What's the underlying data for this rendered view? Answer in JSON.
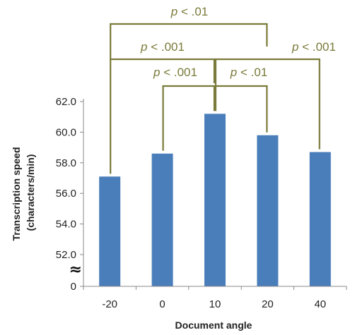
{
  "chart_data": {
    "type": "bar",
    "xlabel": "Document angle",
    "ylabel": "Transcription speed (characters/min)",
    "ylabel_lines": [
      "Transcription speed",
      "(characters/min)"
    ],
    "categories": [
      "-20",
      "0",
      "10",
      "20",
      "40"
    ],
    "values": [
      57.1,
      58.6,
      61.2,
      59.8,
      58.7
    ],
    "y_ticks": [
      {
        "value": 62,
        "label": "62.0"
      },
      {
        "value": 60,
        "label": "60.0"
      },
      {
        "value": 58,
        "label": "58.0"
      },
      {
        "value": 56,
        "label": "56.0"
      },
      {
        "value": 54,
        "label": "54.0"
      },
      {
        "value": 52,
        "label": "52.0"
      }
    ],
    "y_zero_label": "0",
    "axis_break_symbol": "≈",
    "ylim": [
      51,
      63
    ],
    "grid": false,
    "legend": "none",
    "bar_color": "#4a7ebb",
    "significance_color": "#7a7a3a",
    "significance": [
      {
        "from": "0",
        "to": "10",
        "p_symbol": "p",
        "label": "< .001"
      },
      {
        "from": "10",
        "to": "20",
        "p_symbol": "p",
        "label": "< .01"
      },
      {
        "from": "-20",
        "to": "10",
        "p_symbol": "p",
        "label": "< .001"
      },
      {
        "from": "10",
        "to": "40",
        "p_symbol": "p",
        "label": "< .001"
      },
      {
        "from": "-20",
        "to": "20",
        "p_symbol": "p",
        "label": "< .01"
      }
    ]
  }
}
